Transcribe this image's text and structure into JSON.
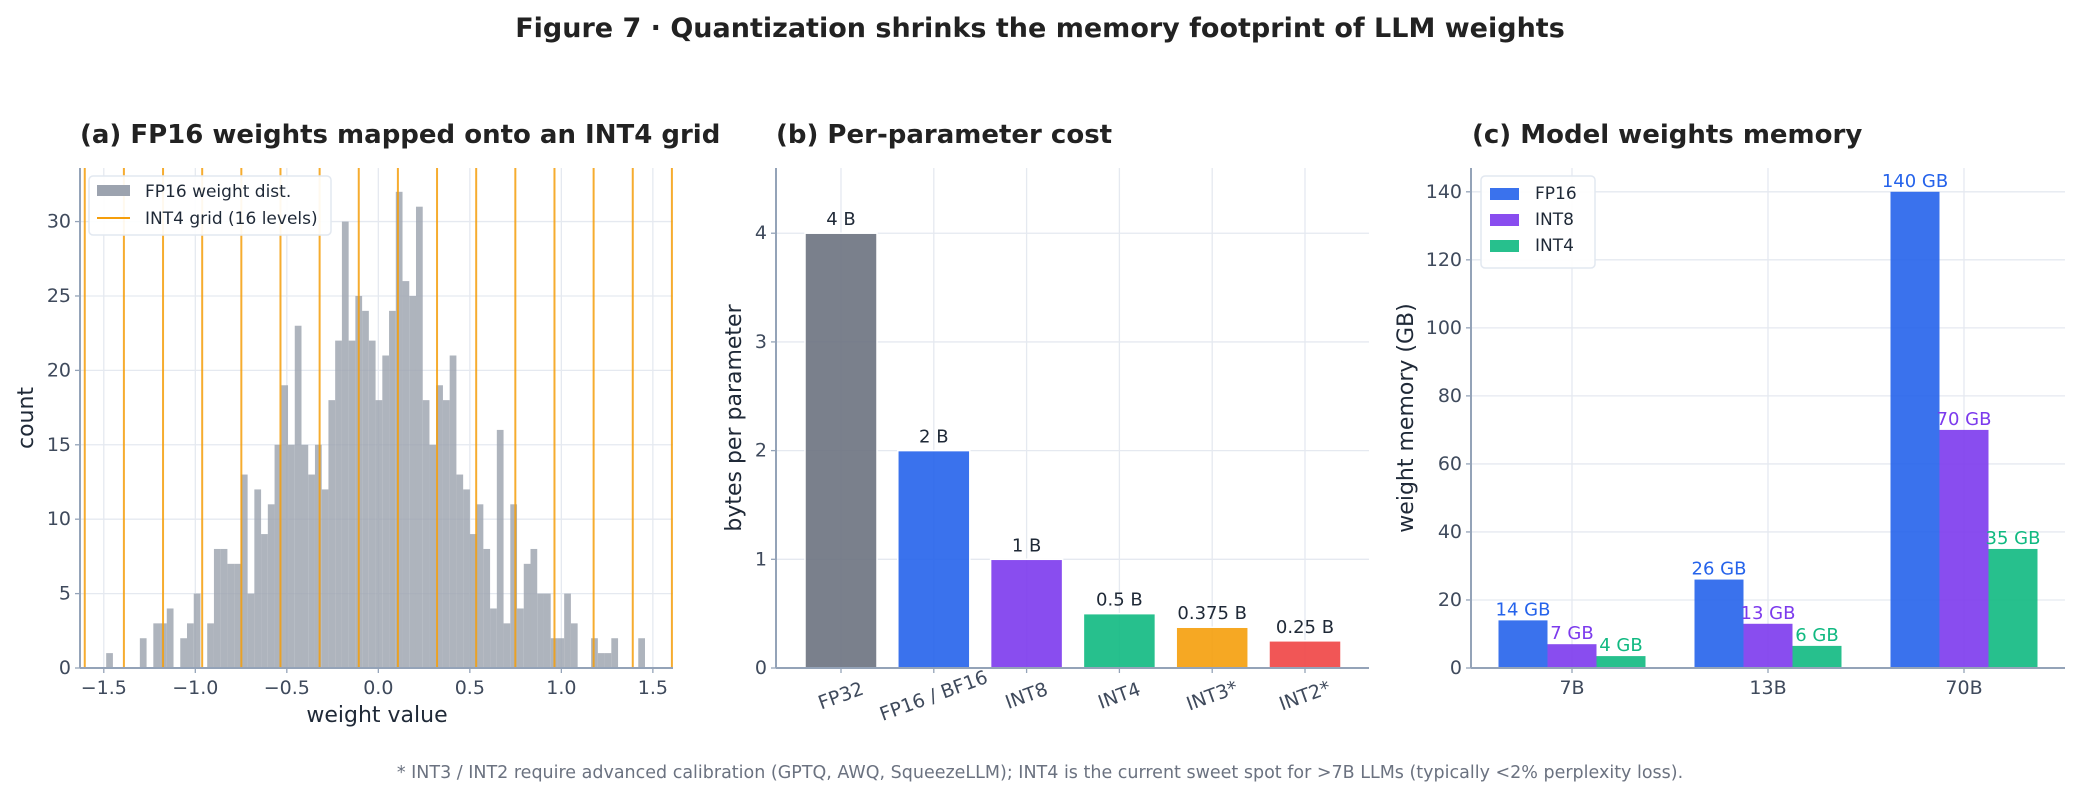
{
  "figure": {
    "title": "Figure 7 · Quantization shrinks the memory footprint of LLM weights",
    "footnote": "* INT3 / INT2 require advanced calibration (GPTQ, AWQ, SqueezeLLM); INT4 is the current sweet spot for >7B LLMs (typically <2% perplexity loss)."
  },
  "chart_data": [
    {
      "type": "histogram",
      "title": "(a) FP16 weights mapped onto an INT4 grid",
      "xlabel": "weight value",
      "ylabel": "count",
      "xlim": [
        -1.63,
        1.61
      ],
      "ylim": [
        0,
        33.6
      ],
      "xticks": [
        -1.5,
        -1.0,
        -0.5,
        0.0,
        0.5,
        1.0,
        1.5
      ],
      "xtick_labels": [
        "−1.5",
        "−1.0",
        "−0.5",
        "0.0",
        "0.5",
        "1.0",
        "1.5"
      ],
      "yticks": [
        0,
        5,
        10,
        15,
        20,
        25,
        30
      ],
      "grid": true,
      "bin_start": -1.487,
      "bin_width": 0.0368,
      "counts": [
        1,
        0,
        0,
        0,
        0,
        2,
        0,
        3,
        3,
        4,
        0,
        2,
        3,
        5,
        0,
        3,
        8,
        8,
        7,
        7,
        13,
        5,
        12,
        9,
        11,
        15,
        19,
        15,
        23,
        15,
        13,
        15,
        12,
        18,
        22,
        30,
        22,
        25,
        24,
        22,
        18,
        21,
        24,
        32,
        26,
        25,
        31,
        18,
        15,
        19,
        18,
        21,
        13,
        12,
        9,
        11,
        8,
        4,
        16,
        3,
        11,
        4,
        7,
        8,
        5,
        5,
        2,
        2,
        5,
        3,
        0,
        0,
        2,
        1,
        1,
        2,
        0,
        0,
        0,
        2
      ],
      "grid_levels": {
        "min": -1.604,
        "max": 1.604,
        "count": 16
      },
      "legend": {
        "placement": "upper-left",
        "entries": [
          "FP16 weight dist.",
          "INT4 grid (16 levels)"
        ]
      },
      "colors": {
        "hist": "#9ca3af",
        "grid_lines": "#f59e0b"
      }
    },
    {
      "type": "bar",
      "title": "(b) Per-parameter cost",
      "xlabel": "",
      "ylabel": "bytes per parameter",
      "ylim": [
        0,
        4.6
      ],
      "yticks": [
        0,
        1,
        2,
        3,
        4
      ],
      "grid": true,
      "categories": [
        "FP32",
        "FP16 / BF16",
        "INT8",
        "INT4",
        "INT3*",
        "INT2*"
      ],
      "values": [
        4,
        2,
        1,
        0.5,
        0.375,
        0.25
      ],
      "data_labels": [
        "4 B",
        "2 B",
        "1 B",
        "0.5 B",
        "0.375 B",
        "0.25 B"
      ],
      "colors": [
        "#6b7280",
        "#2563eb",
        "#7c3aed",
        "#10b981",
        "#f59e0b",
        "#ef4444"
      ]
    },
    {
      "type": "bar",
      "title": "(c) Model weights memory",
      "xlabel": "",
      "ylabel": "weight memory (GB)",
      "ylim": [
        0,
        147
      ],
      "yticks": [
        0,
        20,
        40,
        60,
        80,
        100,
        120,
        140
      ],
      "grid": true,
      "categories": [
        "7B",
        "13B",
        "70B"
      ],
      "legend": {
        "placement": "upper-left"
      },
      "series": [
        {
          "name": "FP16",
          "values": [
            14,
            26,
            140
          ],
          "data_labels": [
            "14 GB",
            "26 GB",
            "140 GB"
          ],
          "color": "#2563eb"
        },
        {
          "name": "INT8",
          "values": [
            7,
            13,
            70
          ],
          "data_labels": [
            "7 GB",
            "13 GB",
            "70 GB"
          ],
          "color": "#7c3aed"
        },
        {
          "name": "INT4",
          "values": [
            3.5,
            6.5,
            35
          ],
          "data_labels": [
            "4 GB",
            "6 GB",
            "35 GB"
          ],
          "color": "#10b981"
        }
      ]
    }
  ]
}
